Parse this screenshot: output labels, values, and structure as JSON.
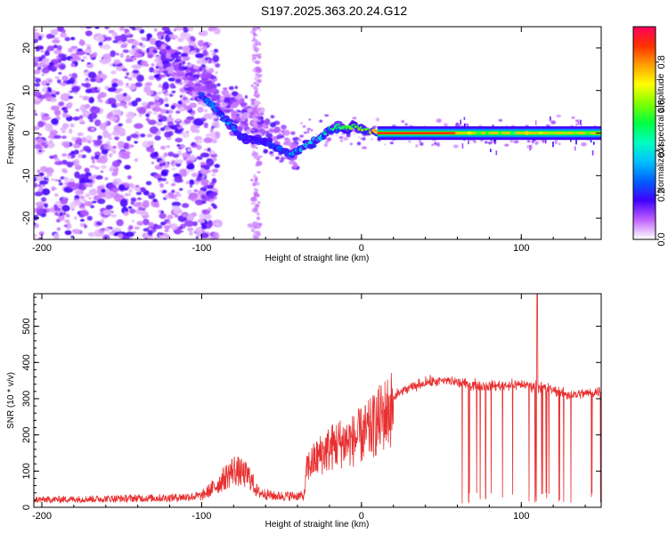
{
  "title": "S197.2025.363.20.24.G12",
  "chart_data": [
    {
      "type": "heatmap",
      "name": "spectrogram",
      "xlabel": "Height of straight line (km)",
      "ylabel": "Frequency (Hz)",
      "xlim": [
        -205,
        150
      ],
      "ylim": [
        -25,
        25
      ],
      "xticks": [
        -200,
        -100,
        0,
        100
      ],
      "yticks": [
        -20,
        -10,
        0,
        10,
        20
      ],
      "colorbar": {
        "label": "Normalized spectral amplitude",
        "ticks": [
          "0.0",
          "0.2",
          "0.4",
          "0.6",
          "0.8"
        ],
        "tick_values": [
          0.0,
          0.2,
          0.4,
          0.6,
          0.8
        ],
        "range": [
          0,
          0.96
        ],
        "colors": [
          "#ffffff",
          "#c060ff",
          "#4000ff",
          "#0060ff",
          "#00c0ff",
          "#00ffc0",
          "#00ff40",
          "#80ff00",
          "#ffff00",
          "#ffa000",
          "#ff3000",
          "#ff0060"
        ]
      },
      "ridge": [
        [
          -100,
          9,
          0.25
        ],
        [
          -95,
          7,
          0.3
        ],
        [
          -90,
          5,
          0.3
        ],
        [
          -85,
          3,
          0.35
        ],
        [
          -80,
          1,
          0.3
        ],
        [
          -75,
          -1,
          0.25
        ],
        [
          -70,
          -1,
          0.2
        ],
        [
          -60,
          -2,
          0.2
        ],
        [
          -55,
          -3,
          0.25
        ],
        [
          -50,
          -4,
          0.3
        ],
        [
          -45,
          -5,
          0.35
        ],
        [
          -40,
          -4,
          0.35
        ],
        [
          -35,
          -3,
          0.4
        ],
        [
          -30,
          -2,
          0.45
        ],
        [
          -25,
          -1,
          0.4
        ],
        [
          -20,
          1,
          0.5
        ],
        [
          -15,
          1.5,
          0.55
        ],
        [
          -10,
          1,
          0.6
        ],
        [
          -5,
          1.5,
          0.6
        ],
        [
          0,
          1,
          0.6
        ],
        [
          5,
          0.5,
          0.65
        ],
        [
          10,
          0,
          0.9
        ],
        [
          60,
          0,
          0.85
        ],
        [
          100,
          0,
          0.8
        ],
        [
          110,
          0,
          0.75
        ],
        [
          150,
          0,
          0.7
        ]
      ]
    },
    {
      "type": "line",
      "name": "snr",
      "xlabel": "Height of straight line (km)",
      "ylabel": "SNR (10 * v/v)",
      "xlim": [
        -205,
        150
      ],
      "ylim": [
        0,
        590
      ],
      "xticks": [
        -200,
        -100,
        0,
        100
      ],
      "yticks": [
        0,
        100,
        200,
        300,
        400,
        500
      ],
      "color": "#e83030",
      "profile": [
        [
          -205,
          20
        ],
        [
          -120,
          25
        ],
        [
          -100,
          30
        ],
        [
          -90,
          60
        ],
        [
          -80,
          100
        ],
        [
          -70,
          80
        ],
        [
          -65,
          40
        ],
        [
          -55,
          30
        ],
        [
          -36,
          30
        ],
        [
          -34,
          120
        ],
        [
          -25,
          160
        ],
        [
          -15,
          190
        ],
        [
          -5,
          200
        ],
        [
          5,
          230
        ],
        [
          15,
          280
        ],
        [
          25,
          320
        ],
        [
          40,
          345
        ],
        [
          55,
          350
        ],
        [
          65,
          340
        ],
        [
          80,
          335
        ],
        [
          100,
          340
        ],
        [
          115,
          330
        ],
        [
          130,
          310
        ],
        [
          150,
          320
        ]
      ],
      "spike": {
        "x": 110,
        "y": 590
      }
    }
  ]
}
